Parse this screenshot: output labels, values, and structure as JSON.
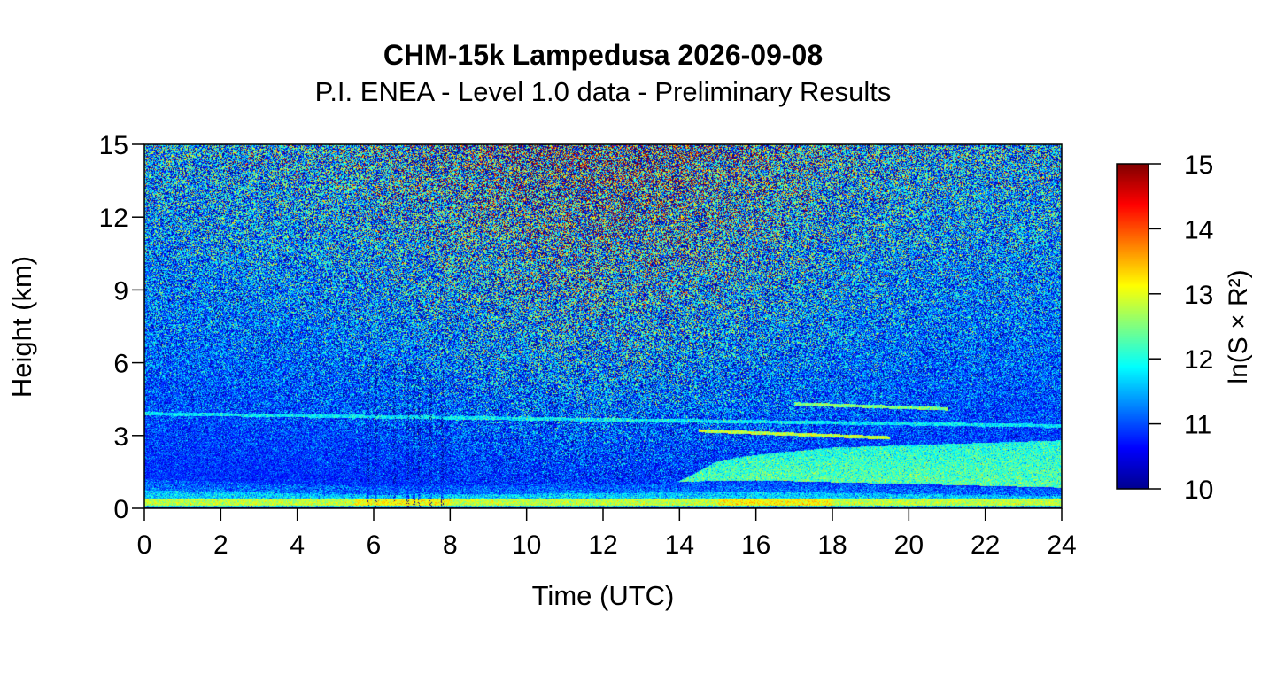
{
  "chart_data": {
    "type": "heatmap",
    "title": "CHM-15k Lampedusa 2026-09-08",
    "subtitle": "P.I. ENEA - Level 1.0 data - Preliminary Results",
    "xlabel": "Time (UTC)",
    "ylabel": "Height (km)",
    "xlim": [
      0,
      24
    ],
    "ylim": [
      0,
      15
    ],
    "x_ticks": [
      "0",
      "2",
      "4",
      "6",
      "8",
      "10",
      "12",
      "14",
      "16",
      "18",
      "20",
      "22",
      "24"
    ],
    "y_ticks": [
      "0",
      "3",
      "6",
      "9",
      "12",
      "15"
    ],
    "colorbar": {
      "label": "ln(S × R²)",
      "range": [
        10,
        15
      ],
      "ticks": [
        "10",
        "11",
        "12",
        "13",
        "14",
        "15"
      ],
      "colormap": [
        "#00008f",
        "#0000ff",
        "#0080ff",
        "#00ffff",
        "#80ff80",
        "#ffff00",
        "#ff8000",
        "#ff0000",
        "#800000"
      ],
      "placement": "right"
    },
    "features": {
      "surface_layer": {
        "height_km": [
          0.1,
          0.4
        ],
        "value_approx": 12.8
      },
      "boundary_layer_top_km": [
        {
          "t": 0,
          "h": 1.2
        },
        {
          "t": 6,
          "h": 0.9
        },
        {
          "t": 12,
          "h": 1.0
        },
        {
          "t": 16,
          "h": 1.1
        },
        {
          "t": 24,
          "h": 0.8
        }
      ],
      "elevated_aerosol_layer": {
        "time_range": [
          13.8,
          24
        ],
        "height_top_km": [
          {
            "t": 14,
            "h": 1.7
          },
          {
            "t": 16,
            "h": 2.2
          },
          {
            "t": 18,
            "h": 2.5
          },
          {
            "t": 20,
            "h": 2.6
          },
          {
            "t": 24,
            "h": 2.8
          }
        ],
        "value_approx": 12.3
      },
      "thin_layers": [
        {
          "time_range": [
            0,
            24
          ],
          "height_km": [
            3.9,
            3.4
          ],
          "value_approx": 11.8
        },
        {
          "time_range": [
            14.5,
            19.5
          ],
          "height_km": [
            3.2,
            2.9
          ],
          "value_approx": 12.8
        },
        {
          "time_range": [
            17,
            21
          ],
          "height_km": [
            4.3,
            4.1
          ],
          "value_approx": 12.5
        }
      ],
      "precipitation_spikes_time": [
        5.85,
        6.05,
        6.55,
        6.9,
        7.05,
        7.2,
        7.5,
        7.8
      ],
      "noise_background": {
        "low_altitude_value": 10.8,
        "high_altitude_value": 13.0
      }
    }
  }
}
